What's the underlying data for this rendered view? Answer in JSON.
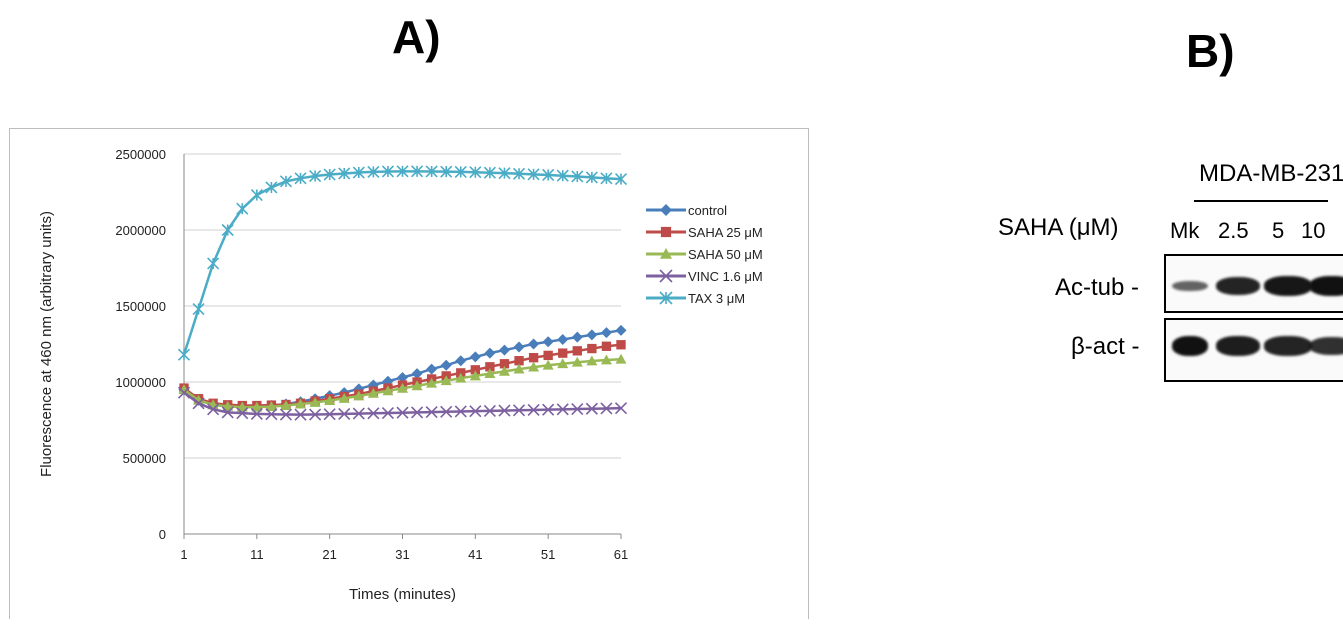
{
  "panel_a": {
    "label": "A)"
  },
  "panel_b": {
    "label": "B)",
    "cell_line": "MDA-MB-231",
    "treatment_label": "SAHA (μM)",
    "lanes": [
      "Mk",
      "2.5",
      "5",
      "10"
    ],
    "rows": [
      {
        "label": "Ac-tub -",
        "intensities": [
          0.35,
          0.85,
          0.95,
          1.0
        ]
      },
      {
        "label": "β-act -",
        "intensities": [
          1.0,
          0.9,
          0.85,
          0.75
        ]
      }
    ]
  },
  "chart_data": {
    "type": "line",
    "xlabel": "Times (minutes)",
    "ylabel": "Fluorescence at 460 nm (arbitrary units)",
    "xticks": [
      1,
      11,
      21,
      31,
      41,
      51,
      61
    ],
    "yticks": [
      0,
      500000,
      1000000,
      1500000,
      2000000,
      2500000
    ],
    "xlim": [
      1,
      61
    ],
    "ylim": [
      0,
      2500000
    ],
    "grid": "horizontal",
    "legend_position": "right",
    "x": [
      1,
      3,
      5,
      7,
      9,
      11,
      13,
      15,
      17,
      19,
      21,
      23,
      25,
      27,
      29,
      31,
      33,
      35,
      37,
      39,
      41,
      43,
      45,
      47,
      49,
      51,
      53,
      55,
      57,
      59,
      61
    ],
    "series": [
      {
        "name": "control",
        "color": "#4a7ebb",
        "marker": "diamond",
        "values": [
          950000,
          880000,
          850000,
          840000,
          835000,
          840000,
          845000,
          855000,
          870000,
          890000,
          910000,
          930000,
          955000,
          980000,
          1005000,
          1030000,
          1055000,
          1085000,
          1110000,
          1140000,
          1165000,
          1190000,
          1210000,
          1230000,
          1250000,
          1265000,
          1280000,
          1295000,
          1310000,
          1325000,
          1340000
        ]
      },
      {
        "name": "SAHA 25 μM",
        "color": "#be4b48",
        "marker": "square",
        "values": [
          960000,
          890000,
          860000,
          850000,
          845000,
          845000,
          848000,
          852000,
          860000,
          875000,
          890000,
          905000,
          920000,
          940000,
          960000,
          980000,
          1000000,
          1020000,
          1040000,
          1060000,
          1080000,
          1100000,
          1120000,
          1140000,
          1160000,
          1175000,
          1190000,
          1205000,
          1220000,
          1235000,
          1245000
        ]
      },
      {
        "name": "SAHA 50 μM",
        "color": "#98b954",
        "marker": "triangle",
        "values": [
          950000,
          880000,
          850000,
          840000,
          835000,
          835000,
          838000,
          845000,
          855000,
          865000,
          878000,
          892000,
          908000,
          925000,
          942000,
          958000,
          975000,
          992000,
          1008000,
          1025000,
          1040000,
          1055000,
          1070000,
          1085000,
          1098000,
          1110000,
          1120000,
          1130000,
          1138000,
          1145000,
          1150000
        ]
      },
      {
        "name": "VINC 1.6 μM",
        "color": "#7d60a0",
        "marker": "x",
        "values": [
          930000,
          860000,
          820000,
          800000,
          795000,
          790000,
          788000,
          786000,
          785000,
          786000,
          788000,
          790000,
          792000,
          794000,
          796000,
          798000,
          800000,
          802000,
          804000,
          806000,
          808000,
          810000,
          812000,
          814000,
          816000,
          818000,
          820000,
          822000,
          824000,
          826000,
          828000
        ]
      },
      {
        "name": "TAX 3 μM",
        "color": "#4bacc6",
        "marker": "star",
        "values": [
          1180000,
          1480000,
          1780000,
          2000000,
          2140000,
          2230000,
          2280000,
          2320000,
          2340000,
          2355000,
          2365000,
          2372000,
          2378000,
          2382000,
          2385000,
          2386000,
          2386000,
          2385000,
          2384000,
          2382000,
          2380000,
          2377000,
          2374000,
          2370000,
          2366000,
          2362000,
          2357000,
          2352000,
          2346000,
          2340000,
          2335000
        ]
      }
    ]
  }
}
